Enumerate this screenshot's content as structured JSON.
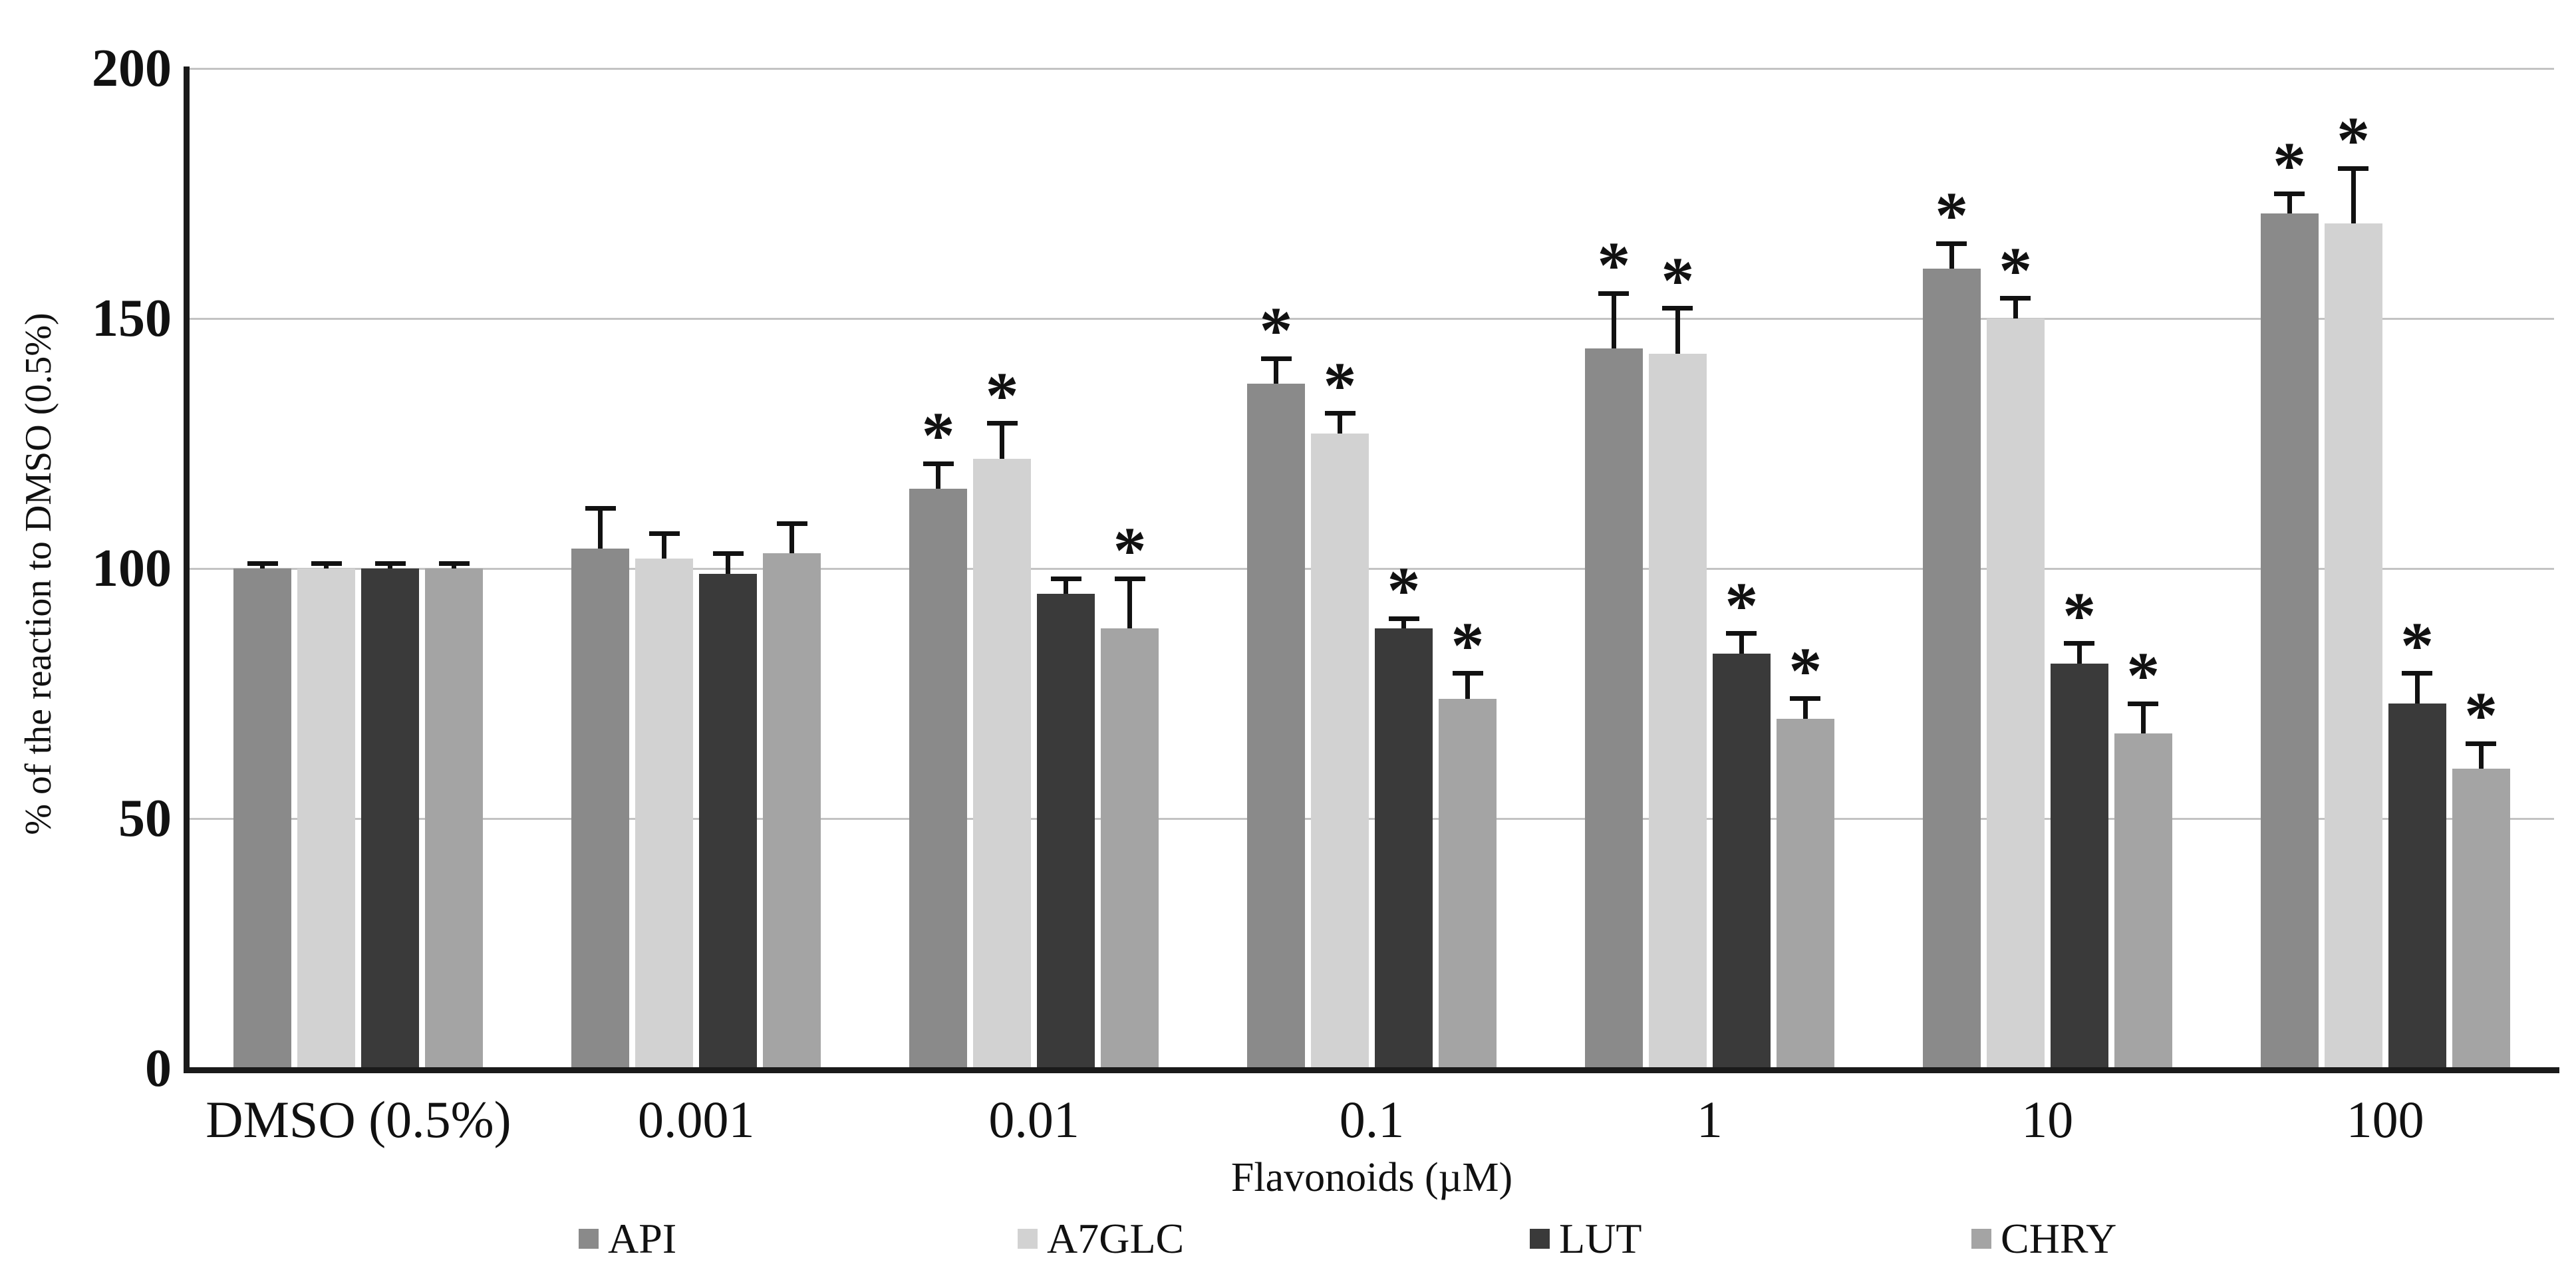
{
  "chart_data": {
    "type": "bar",
    "title": "",
    "ylabel": "% of the reaction to DMSO (0.5%)",
    "xlabel": "Flavonoids (µM)",
    "ylim": [
      0,
      200
    ],
    "yticks": [
      0,
      50,
      100,
      150,
      200
    ],
    "grid": "horizontal",
    "gridline_color": "#c3c3c3",
    "axis_color": "#1a1a1a",
    "legend_position": "bottom",
    "annotation_symbol": "*",
    "annotation_meaning": "significant vs DMSO control",
    "error_bars": "upper only",
    "categories": [
      "DMSO (0.5%)",
      "0.001",
      "0.01",
      "0.1",
      "1",
      "10",
      "100"
    ],
    "series": [
      {
        "name": "API",
        "color": "#8a8a8a",
        "values": [
          100,
          104,
          116,
          137,
          144,
          160,
          171
        ],
        "errors": [
          1,
          8,
          5,
          5,
          11,
          5,
          4
        ],
        "significant": [
          false,
          false,
          true,
          true,
          true,
          true,
          true
        ]
      },
      {
        "name": "A7GLC",
        "color": "#d2d2d2",
        "values": [
          100,
          102,
          122,
          127,
          143,
          150,
          169
        ],
        "errors": [
          1,
          5,
          7,
          4,
          9,
          4,
          11
        ],
        "significant": [
          false,
          false,
          true,
          true,
          true,
          true,
          true
        ]
      },
      {
        "name": "LUT",
        "color": "#3a3a3a",
        "values": [
          100,
          99,
          95,
          88,
          83,
          81,
          73
        ],
        "errors": [
          1,
          4,
          3,
          2,
          4,
          4,
          6
        ],
        "significant": [
          false,
          false,
          false,
          true,
          true,
          true,
          true
        ]
      },
      {
        "name": "CHRY",
        "color": "#a4a4a4",
        "values": [
          100,
          103,
          88,
          74,
          70,
          67,
          60
        ],
        "errors": [
          1,
          6,
          10,
          5,
          4,
          6,
          5
        ],
        "significant": [
          false,
          false,
          true,
          true,
          true,
          true,
          true
        ]
      }
    ]
  }
}
